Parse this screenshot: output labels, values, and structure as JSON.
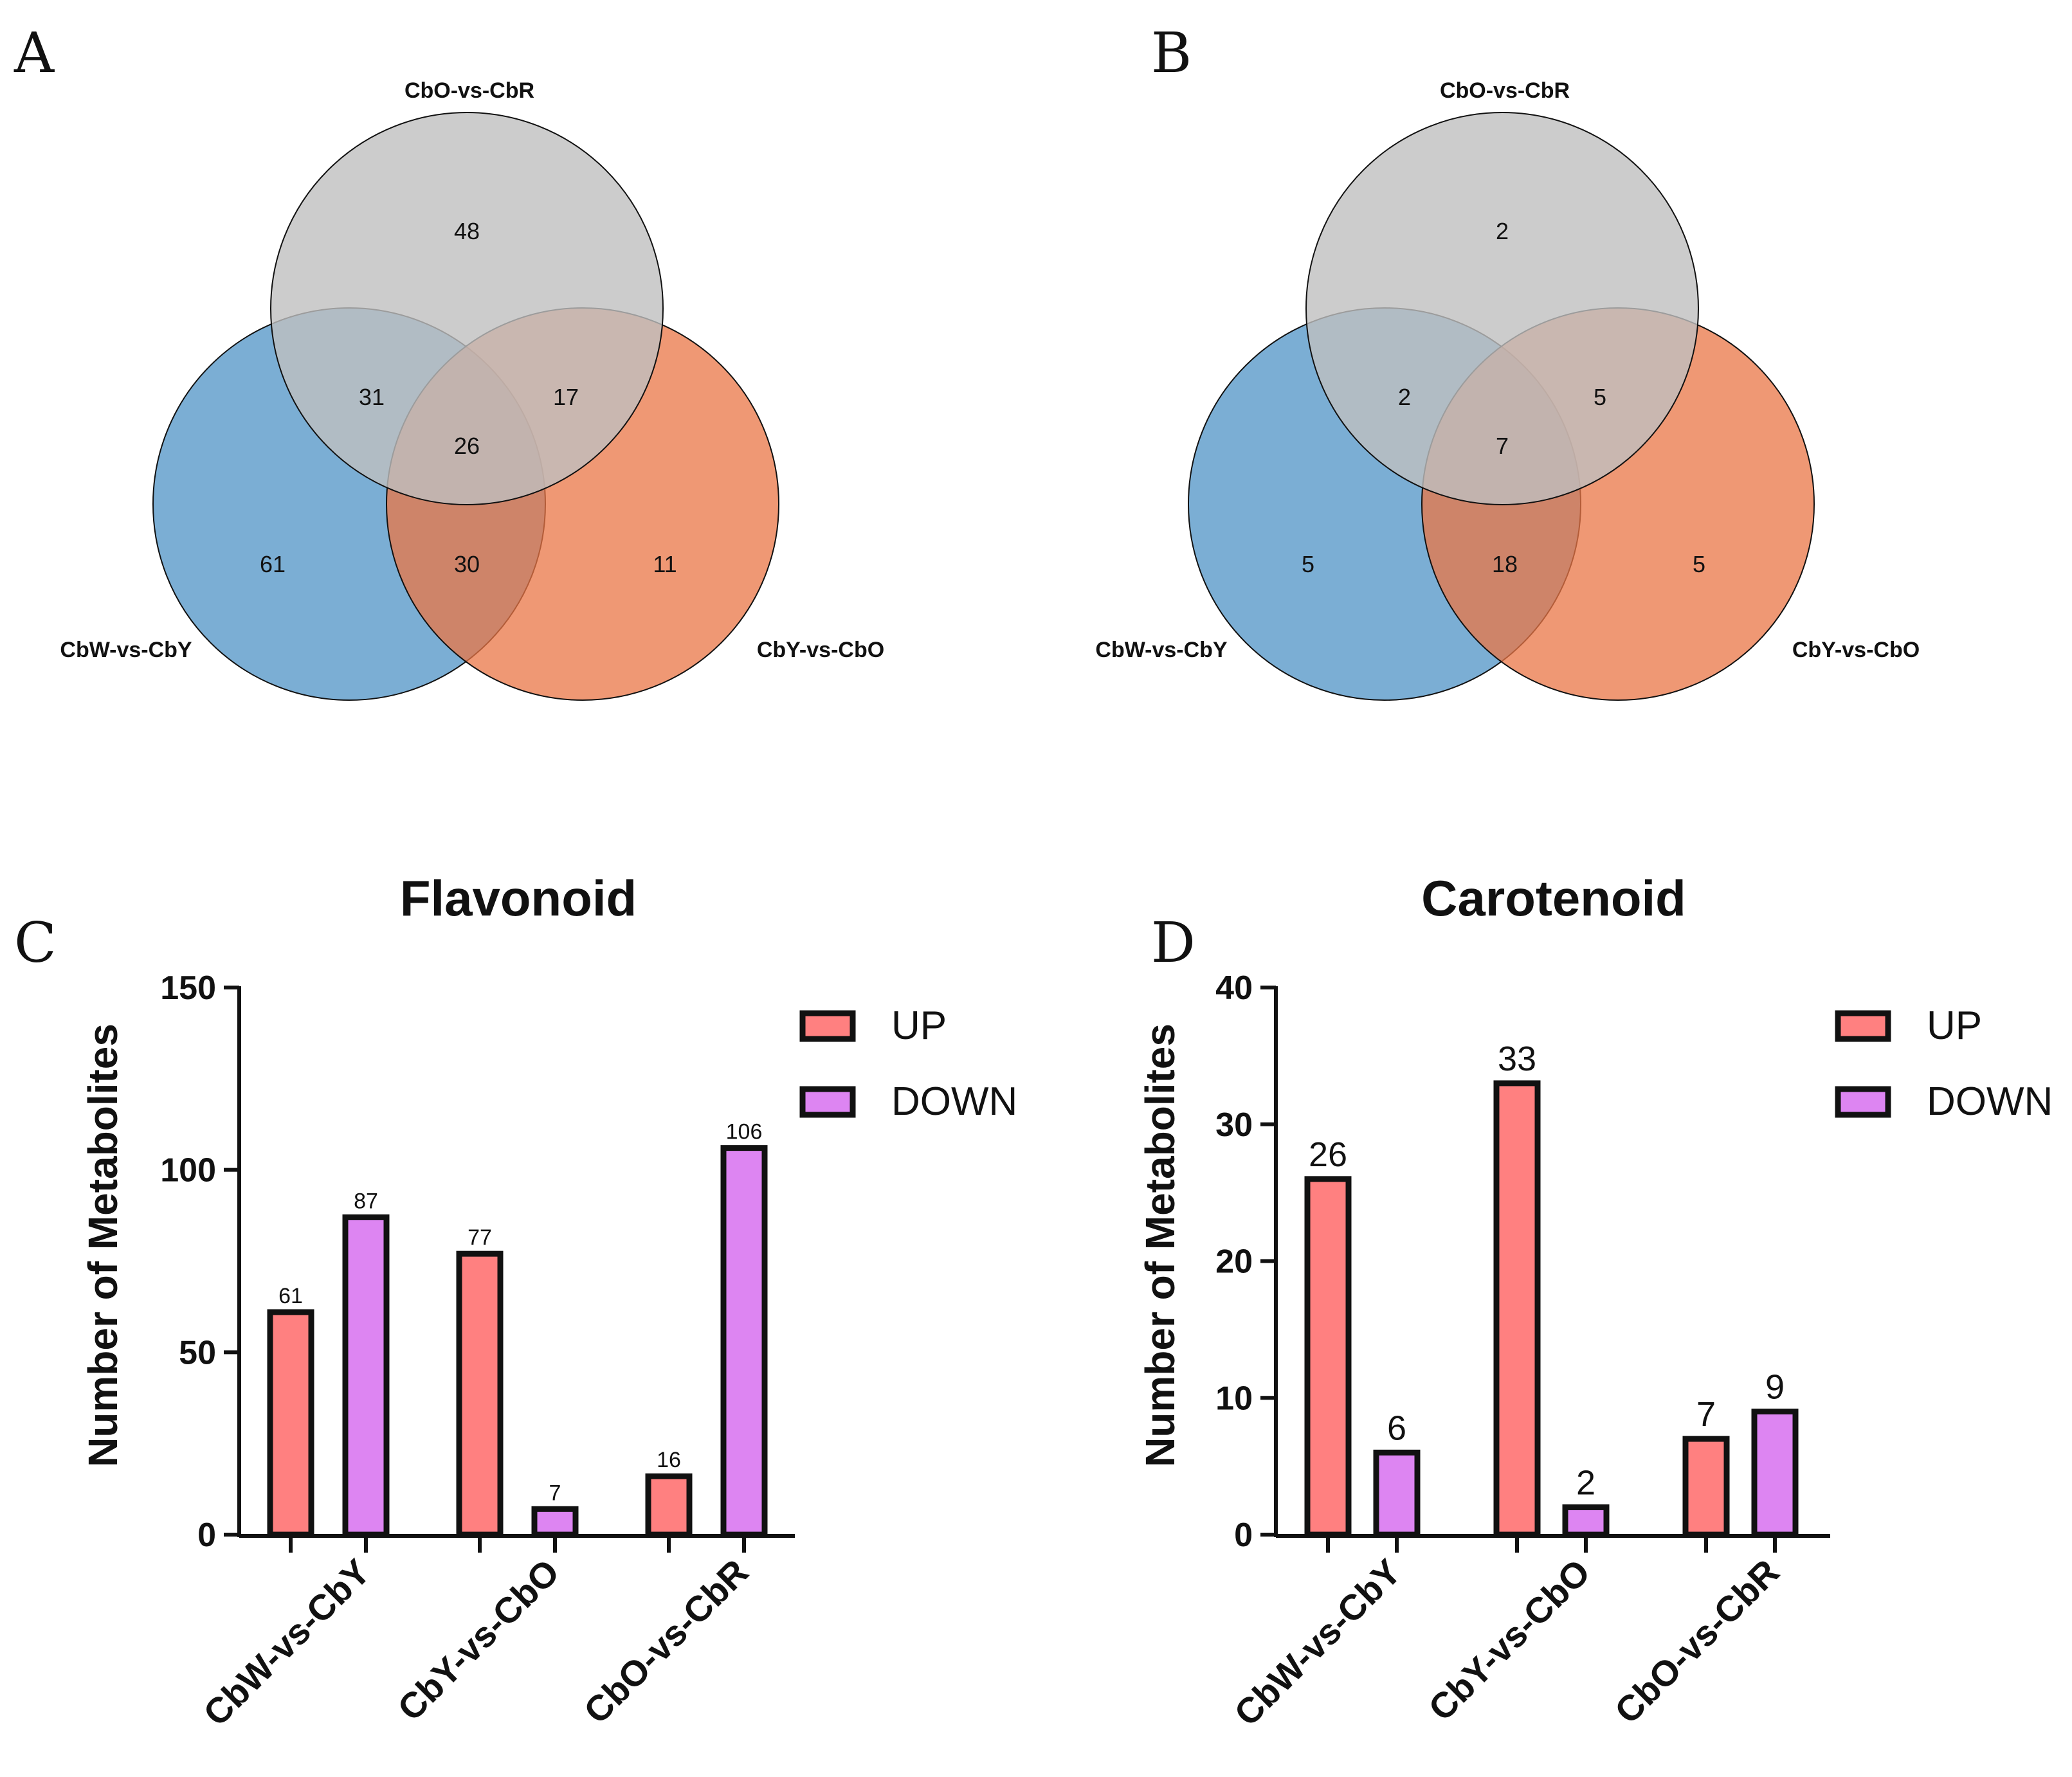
{
  "colors": {
    "set_top": "#bfbfbf",
    "set_left": "#4f93c6",
    "set_right": "#ea7645",
    "up": "#ff8080",
    "down": "#dd85f2",
    "outline": "#111111"
  },
  "panels": {
    "a": {
      "letter": "A"
    },
    "b": {
      "letter": "B"
    },
    "c": {
      "letter": "C"
    },
    "d": {
      "letter": "D"
    }
  },
  "chart_data": [
    {
      "type": "venn",
      "panel": "A",
      "sets": [
        "CbO-vs-CbR",
        "CbW-vs-CbY",
        "CbY-vs-CbO"
      ],
      "regions": {
        "CbO-vs-CbR only": 48,
        "CbW-vs-CbY only": 61,
        "CbY-vs-CbO only": 11,
        "CbO-vs-CbR & CbW-vs-CbY": 31,
        "CbO-vs-CbR & CbY-vs-CbO": 17,
        "CbW-vs-CbY & CbY-vs-CbO": 30,
        "all three": 26
      },
      "labels": {
        "set_top": "CbO-vs-CbR",
        "set_left": "CbW-vs-CbY",
        "set_right": "CbY-vs-CbO",
        "top_only": "48",
        "left_only": "61",
        "right_only": "11",
        "top_left": "31",
        "top_right": "17",
        "left_right": "30",
        "all": "26"
      }
    },
    {
      "type": "venn",
      "panel": "B",
      "sets": [
        "CbO-vs-CbR",
        "CbW-vs-CbY",
        "CbY-vs-CbO"
      ],
      "regions": {
        "CbO-vs-CbR only": 2,
        "CbW-vs-CbY only": 5,
        "CbY-vs-CbO only": 5,
        "CbO-vs-CbR & CbW-vs-CbY": 2,
        "CbO-vs-CbR & CbY-vs-CbO": 5,
        "CbW-vs-CbY & CbY-vs-CbO": 18,
        "all three": 7
      },
      "labels": {
        "set_top": "CbO-vs-CbR",
        "set_left": "CbW-vs-CbY",
        "set_right": "CbY-vs-CbO",
        "top_only": "2",
        "left_only": "5",
        "right_only": "5",
        "top_left": "2",
        "top_right": "5",
        "left_right": "18",
        "all": "7"
      }
    },
    {
      "type": "bar",
      "panel": "C",
      "title": "Flavonoid",
      "ylabel": "Number of Metabolites",
      "xlabel": "",
      "categories": [
        "CbW-vs-CbY",
        "CbY-vs-CbO",
        "CbO-vs-CbR"
      ],
      "series": [
        {
          "name": "UP",
          "values": [
            61,
            77,
            16
          ]
        },
        {
          "name": "DOWN",
          "values": [
            87,
            7,
            106
          ]
        }
      ],
      "ylim": [
        0,
        150
      ],
      "yticks": [
        0,
        50,
        100,
        150
      ],
      "ytick_labels": [
        "0",
        "50",
        "100",
        "150"
      ],
      "legend": "top-right",
      "grid": false
    },
    {
      "type": "bar",
      "panel": "D",
      "title": "Carotenoid",
      "ylabel": "Number of Metabolites",
      "xlabel": "",
      "categories": [
        "CbW-vs-CbY",
        "CbY-vs-CbO",
        "CbO-vs-CbR"
      ],
      "series": [
        {
          "name": "UP",
          "values": [
            26,
            33,
            7
          ]
        },
        {
          "name": "DOWN",
          "values": [
            6,
            2,
            9
          ]
        }
      ],
      "ylim": [
        0,
        40
      ],
      "yticks": [
        0,
        10,
        20,
        30,
        40
      ],
      "ytick_labels": [
        "0",
        "10",
        "20",
        "30",
        "40"
      ],
      "legend": "top-right",
      "grid": false
    }
  ]
}
